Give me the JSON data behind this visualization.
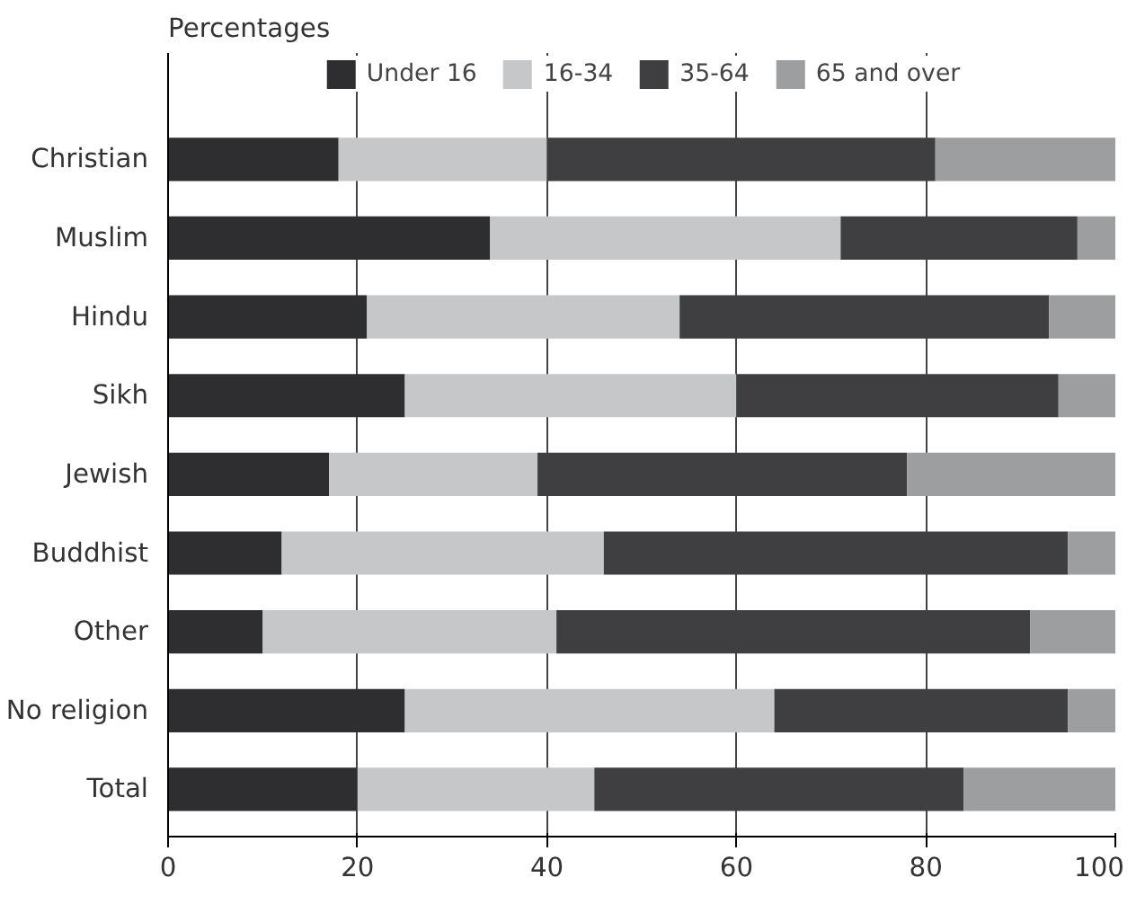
{
  "chart_data": {
    "type": "bar",
    "orientation": "horizontal",
    "stacked": true,
    "title": "Percentages",
    "categories": [
      "Christian",
      "Muslim",
      "Hindu",
      "Sikh",
      "Jewish",
      "Buddhist",
      "Other",
      "No religion",
      "Total"
    ],
    "series": [
      {
        "name": "Under 16",
        "color": "#2e2d2f",
        "values": [
          18,
          34,
          21,
          25,
          17,
          12,
          10,
          25,
          20
        ]
      },
      {
        "name": "16-34",
        "color": "#c6c7c9",
        "values": [
          22,
          37,
          33,
          35,
          22,
          34,
          31,
          39,
          25
        ]
      },
      {
        "name": "35-64",
        "color": "#3f3f41",
        "values": [
          41,
          25,
          39,
          34,
          39,
          49,
          50,
          31,
          39
        ]
      },
      {
        "name": "65 and over",
        "color": "#9d9ea0",
        "values": [
          19,
          4,
          7,
          6,
          22,
          5,
          9,
          5,
          16
        ]
      }
    ],
    "xlim": [
      0,
      100
    ],
    "xticks": [
      0,
      20,
      40,
      60,
      80,
      100
    ],
    "grid": "x",
    "legend": "top"
  }
}
